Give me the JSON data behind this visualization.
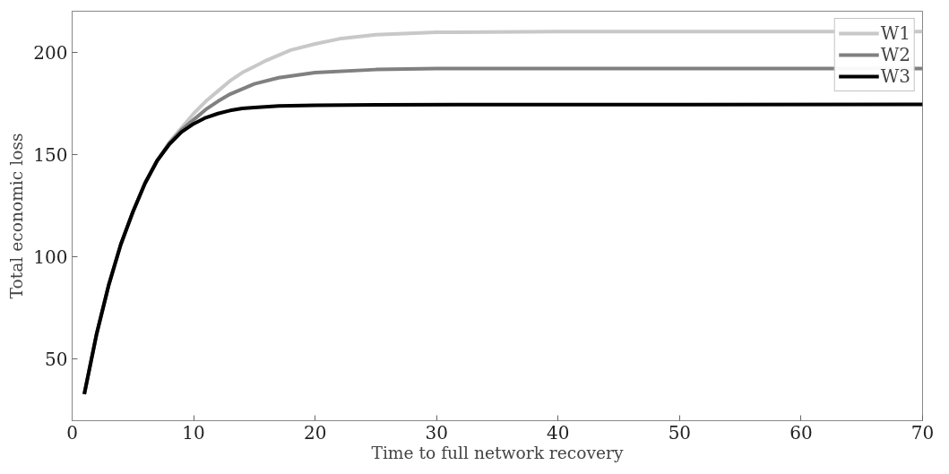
{
  "chart_data": {
    "type": "line",
    "xlabel": "Time to full network recovery",
    "ylabel": "Total economic loss",
    "xlim": [
      0,
      70
    ],
    "ylim": [
      20,
      220
    ],
    "xticks": [
      0,
      10,
      20,
      30,
      40,
      50,
      60,
      70
    ],
    "yticks": [
      50,
      100,
      150,
      200
    ],
    "grid": false,
    "legend": "top right",
    "line_style": "solid",
    "marker": "none",
    "series": [
      {
        "name": "W1",
        "color": "#c8c8c8",
        "x": [
          1,
          2,
          3,
          4,
          5,
          6,
          7,
          8,
          9,
          10,
          11,
          12,
          13,
          14,
          15,
          16,
          18,
          20,
          22,
          25,
          30,
          40,
          70
        ],
        "values": [
          33,
          62,
          86,
          106,
          122,
          136,
          147,
          156,
          163,
          170,
          176,
          181,
          186,
          190,
          193,
          196,
          201,
          204,
          206.5,
          208.5,
          209.7,
          210,
          210
        ]
      },
      {
        "name": "W2",
        "color": "#808080",
        "x": [
          1,
          2,
          3,
          4,
          5,
          6,
          7,
          8,
          9,
          10,
          11,
          12,
          13,
          14,
          15,
          17,
          20,
          25,
          30,
          70
        ],
        "values": [
          33,
          62,
          86,
          106,
          122,
          136,
          147,
          155.5,
          162,
          167,
          172,
          176,
          179.5,
          182,
          184.5,
          187.5,
          190,
          191.5,
          192,
          192
        ]
      },
      {
        "name": "W3",
        "color": "#000000",
        "x": [
          1,
          2,
          3,
          4,
          5,
          6,
          7,
          8,
          9,
          10,
          11,
          12,
          13,
          14,
          15,
          17,
          20,
          25,
          70
        ],
        "values": [
          33,
          62,
          86,
          106,
          122,
          136,
          147,
          155,
          161,
          165,
          168,
          170,
          171.5,
          172.5,
          173,
          173.7,
          174,
          174.3,
          174.5
        ]
      }
    ]
  }
}
